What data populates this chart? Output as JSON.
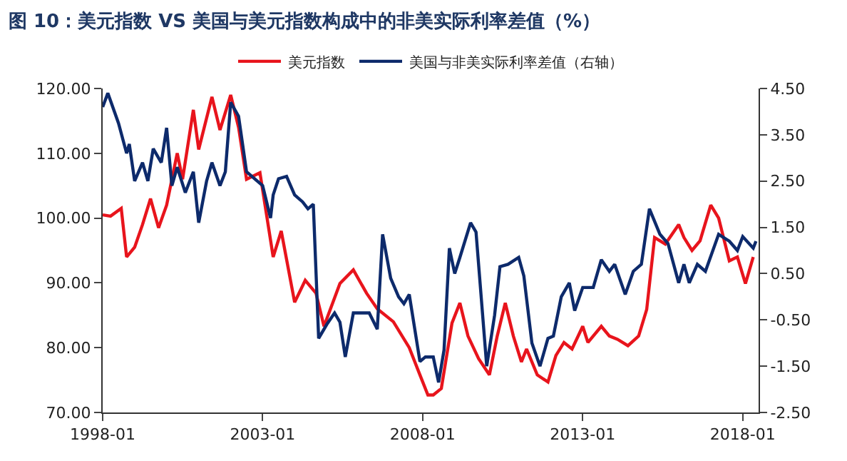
{
  "chart_data": {
    "type": "line",
    "title": "图 10：美元指数 VS 美国与美元指数构成中的非美实际利率差值（%）",
    "series": [
      {
        "name": "美元指数",
        "color": "#e8141c",
        "x": [
          "1998-01",
          "1998-04",
          "1998-08",
          "1998-10",
          "1999-01",
          "1999-04",
          "1999-07",
          "1999-10",
          "2000-01",
          "2000-05",
          "2000-07",
          "2000-11",
          "2001-01",
          "2001-06",
          "2001-09",
          "2002-01",
          "2002-04",
          "2002-07",
          "2002-12",
          "2003-05",
          "2003-08",
          "2004-01",
          "2004-05",
          "2004-09",
          "2004-12",
          "2005-06",
          "2005-11",
          "2006-04",
          "2006-08",
          "2007-02",
          "2007-08",
          "2007-12",
          "2008-03",
          "2008-05",
          "2008-08",
          "2008-12",
          "2009-03",
          "2009-06",
          "2009-10",
          "2010-02",
          "2010-05",
          "2010-08",
          "2010-11",
          "2011-02",
          "2011-04",
          "2011-08",
          "2011-12",
          "2012-03",
          "2012-06",
          "2012-09",
          "2013-01",
          "2013-03",
          "2013-08",
          "2013-11",
          "2014-02",
          "2014-06",
          "2014-10",
          "2015-01",
          "2015-04",
          "2015-08",
          "2016-01",
          "2016-03",
          "2016-06",
          "2016-09",
          "2017-01",
          "2017-04",
          "2017-08",
          "2017-11",
          "2018-02",
          "2018-05"
        ],
        "values": [
          100.5,
          100.3,
          101.5,
          94,
          95.5,
          99,
          103,
          98.5,
          102,
          110,
          106,
          116.7,
          110.6,
          118.7,
          113.6,
          119,
          114,
          106,
          107,
          94,
          98,
          87,
          90.4,
          88.4,
          83.3,
          89.9,
          92,
          88.4,
          86,
          84,
          80,
          75.8,
          72.7,
          72.7,
          73.7,
          83.8,
          86.9,
          81.8,
          78.3,
          75.8,
          81.8,
          86.9,
          81.8,
          77.8,
          79.8,
          75.8,
          74.7,
          78.8,
          80.8,
          79.8,
          83.3,
          80.8,
          83.3,
          81.8,
          81.3,
          80.3,
          81.8,
          85.9,
          97,
          96,
          99,
          97,
          95,
          96.5,
          102,
          100,
          93.4,
          94,
          89.9,
          94
        ]
      },
      {
        "name": "美国与非美实际利率差值（右轴）",
        "color": "#0d2a6b",
        "axis": "y2",
        "x": [
          "1998-01",
          "1998-03",
          "1998-07",
          "1998-10",
          "1998-11",
          "1999-01",
          "1999-04",
          "1999-06",
          "1999-08",
          "1999-11",
          "2000-01",
          "2000-03",
          "2000-05",
          "2000-08",
          "2000-11",
          "2001-01",
          "2001-04",
          "2001-06",
          "2001-09",
          "2001-11",
          "2002-01",
          "2002-04",
          "2002-07",
          "2003-01",
          "2003-04",
          "2003-05",
          "2003-07",
          "2003-10",
          "2004-01",
          "2004-04",
          "2004-06",
          "2004-08",
          "2004-10",
          "2005-01",
          "2005-04",
          "2005-06",
          "2005-08",
          "2005-11",
          "2006-05",
          "2006-08",
          "2006-10",
          "2007-01",
          "2007-04",
          "2007-06",
          "2007-08",
          "2007-12",
          "2008-02",
          "2008-05",
          "2008-07",
          "2008-09",
          "2008-11",
          "2009-01",
          "2009-03",
          "2009-07",
          "2009-09",
          "2010-01",
          "2010-04",
          "2010-06",
          "2010-09",
          "2011-01",
          "2011-03",
          "2011-06",
          "2011-09",
          "2011-12",
          "2012-02",
          "2012-05",
          "2012-08",
          "2012-10",
          "2013-01",
          "2013-05",
          "2013-08",
          "2013-11",
          "2014-01",
          "2014-05",
          "2014-08",
          "2014-11",
          "2015-02",
          "2015-06",
          "2015-09",
          "2016-01",
          "2016-03",
          "2016-05",
          "2016-08",
          "2016-11",
          "2017-04",
          "2017-08",
          "2017-11",
          "2018-01",
          "2018-05",
          "2018-06"
        ],
        "values": [
          4.1,
          4.4,
          3.75,
          3.1,
          3.3,
          2.5,
          2.9,
          2.5,
          3.2,
          2.9,
          3.65,
          2.4,
          2.8,
          2.25,
          2.7,
          1.6,
          2.5,
          2.9,
          2.4,
          2.7,
          4.2,
          3.9,
          2.7,
          2.4,
          1.7,
          2.2,
          2.55,
          2.6,
          2.2,
          2.05,
          1.9,
          2.0,
          -0.9,
          -0.6,
          -0.35,
          -0.55,
          -1.3,
          -0.35,
          -0.35,
          -0.7,
          1.35,
          0.4,
          0.0,
          -0.15,
          0.05,
          -1.4,
          -1.3,
          -1.3,
          -1.85,
          -1.15,
          1.05,
          0.5,
          0.85,
          1.6,
          1.4,
          -1.5,
          -0.4,
          0.65,
          0.7,
          0.85,
          0.45,
          -1.0,
          -1.5,
          -0.9,
          -0.85,
          0.0,
          0.3,
          -0.3,
          0.2,
          0.2,
          0.8,
          0.55,
          0.7,
          0.05,
          0.55,
          0.7,
          1.9,
          1.35,
          1.15,
          0.3,
          0.7,
          0.3,
          0.7,
          0.55,
          1.35,
          1.2,
          1.0,
          1.3,
          1.05,
          1.2
        ]
      }
    ],
    "xlim": [
      "1998-01",
      "2018-07"
    ],
    "xticks": [
      "1998-01",
      "2003-01",
      "2008-01",
      "2013-01",
      "2018-01"
    ],
    "ylim": [
      70,
      120
    ],
    "yticks": [
      {
        "value": 70,
        "label": "70.00"
      },
      {
        "value": 80,
        "label": "80.00"
      },
      {
        "value": 90,
        "label": "90.00"
      },
      {
        "value": 100,
        "label": "100.00"
      },
      {
        "value": 110,
        "label": "110.00"
      },
      {
        "value": 120,
        "label": "120.00"
      }
    ],
    "y2lim": [
      -2.5,
      4.5
    ],
    "y2ticks": [
      {
        "value": -2.5,
        "label": "-2.50"
      },
      {
        "value": -1.5,
        "label": "-1.50"
      },
      {
        "value": -0.5,
        "label": "-0.50"
      },
      {
        "value": 0.5,
        "label": "0.50"
      },
      {
        "value": 1.5,
        "label": "1.50"
      },
      {
        "value": 2.5,
        "label": "2.50"
      },
      {
        "value": 3.5,
        "label": "3.50"
      },
      {
        "value": 4.5,
        "label": "4.50"
      }
    ],
    "legend": "top",
    "marker": "none",
    "line_style": "solid"
  }
}
